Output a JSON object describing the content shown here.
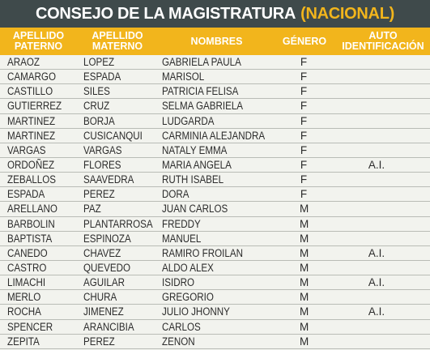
{
  "title": {
    "main": "CONSEJO DE LA MAGISTRATURA",
    "accent": "(NACIONAL)"
  },
  "headers": {
    "paterno_l1": "APELLIDO",
    "paterno_l2": "PATERNO",
    "materno_l1": "APELLIDO",
    "materno_l2": "MATERNO",
    "nombres": "NOMBRES",
    "genero": "GÉNERO",
    "auto_l1": "AUTO",
    "auto_l2": "IDENTIFICACIÓN"
  },
  "colors": {
    "title_bg": "#3f4a4b",
    "header_bg": "#f2b51c",
    "accent": "#f2b51c",
    "body_bg": "#f2f3ee"
  },
  "rows": [
    {
      "paterno": "ARAOZ",
      "materno": "LOPEZ",
      "nombres": "GABRIELA PAULA",
      "genero": "F",
      "auto": ""
    },
    {
      "paterno": "CAMARGO",
      "materno": "ESPADA",
      "nombres": "MARISOL",
      "genero": "F",
      "auto": ""
    },
    {
      "paterno": "CASTILLO",
      "materno": "SILES",
      "nombres": "PATRICIA FELISA",
      "genero": "F",
      "auto": ""
    },
    {
      "paterno": "GUTIERREZ",
      "materno": "CRUZ",
      "nombres": "SELMA GABRIELA",
      "genero": "F",
      "auto": ""
    },
    {
      "paterno": "MARTINEZ",
      "materno": "BORJA",
      "nombres": "LUDGARDA",
      "genero": "F",
      "auto": ""
    },
    {
      "paterno": "MARTINEZ",
      "materno": "CUSICANQUI",
      "nombres": "CARMINIA ALEJANDRA",
      "genero": "F",
      "auto": ""
    },
    {
      "paterno": "VARGAS",
      "materno": "VARGAS",
      "nombres": "NATALY EMMA",
      "genero": "F",
      "auto": ""
    },
    {
      "paterno": "ORDOÑEZ",
      "materno": "FLORES",
      "nombres": "MARIA ANGELA",
      "genero": "F",
      "auto": "A.I."
    },
    {
      "paterno": "ZEBALLOS",
      "materno": "SAAVEDRA",
      "nombres": "RUTH ISABEL",
      "genero": "F",
      "auto": ""
    },
    {
      "paterno": "ESPADA",
      "materno": "PEREZ",
      "nombres": "DORA",
      "genero": "F",
      "auto": ""
    },
    {
      "paterno": "ARELLANO",
      "materno": "PAZ",
      "nombres": "JUAN CARLOS",
      "genero": "M",
      "auto": ""
    },
    {
      "paterno": "BARBOLIN",
      "materno": "PLANTARROSA",
      "nombres": "FREDDY",
      "genero": "M",
      "auto": ""
    },
    {
      "paterno": "BAPTISTA",
      "materno": "ESPINOZA",
      "nombres": "MANUEL",
      "genero": "M",
      "auto": ""
    },
    {
      "paterno": "CANEDO",
      "materno": "CHAVEZ",
      "nombres": "RAMIRO FROILAN",
      "genero": "M",
      "auto": "A.I."
    },
    {
      "paterno": "CASTRO",
      "materno": "QUEVEDO",
      "nombres": "ALDO ALEX",
      "genero": "M",
      "auto": ""
    },
    {
      "paterno": "LIMACHI",
      "materno": "AGUILAR",
      "nombres": "ISIDRO",
      "genero": "M",
      "auto": "A.I."
    },
    {
      "paterno": "MERLO",
      "materno": "CHURA",
      "nombres": "GREGORIO",
      "genero": "M",
      "auto": ""
    },
    {
      "paterno": "ROCHA",
      "materno": "JIMENEZ",
      "nombres": "JULIO JHONNY",
      "genero": "M",
      "auto": "A.I."
    },
    {
      "paterno": "SPENCER",
      "materno": "ARANCIBIA",
      "nombres": "CARLOS",
      "genero": "M",
      "auto": ""
    },
    {
      "paterno": "ZEPITA",
      "materno": "PEREZ",
      "nombres": "ZENON",
      "genero": "M",
      "auto": ""
    }
  ]
}
